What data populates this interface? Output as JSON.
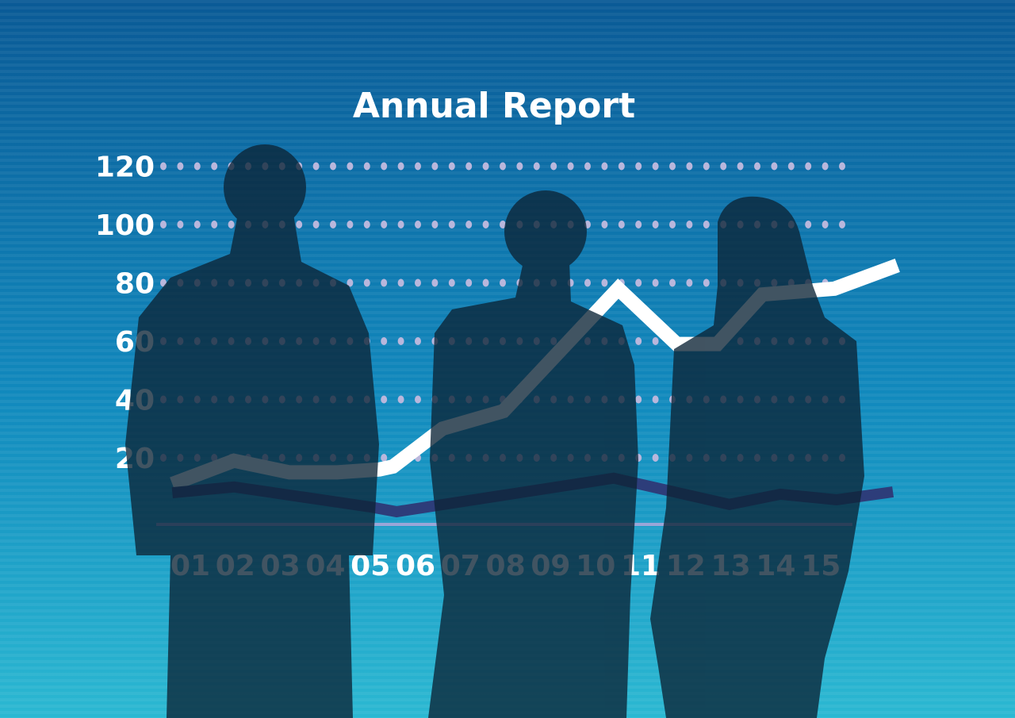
{
  "chart_data": {
    "type": "line",
    "title": "Annual Report",
    "xlabel": "",
    "ylabel": "",
    "ylim": [
      0,
      120
    ],
    "xlim": [
      0.6,
      16.7
    ],
    "y_ticks": [
      "20",
      "40",
      "60",
      "80",
      "100",
      "120"
    ],
    "x_ticks": [
      "01",
      "02",
      "03",
      "04",
      "05",
      "06",
      "07",
      "08",
      "09",
      "10",
      "11",
      "12",
      "13",
      "14",
      "15"
    ],
    "grid": "dotted horizontal",
    "series": [
      {
        "color": "#ffffff",
        "x": [
          0.6,
          1.97,
          3.2,
          4.26,
          5.2,
          5.5,
          6.6,
          7.95,
          10.5,
          11.8,
          12.7,
          13.7,
          15.3,
          16.7
        ],
        "values": [
          11,
          19,
          15,
          15,
          16,
          17,
          30,
          36,
          78,
          59,
          59,
          76,
          78,
          86
        ]
      },
      {
        "color": "#2d3d7a",
        "x": [
          0.6,
          1.97,
          5.05,
          5.58,
          10.4,
          12.97,
          14.1,
          15.35,
          16.6
        ],
        "values": [
          8,
          10,
          3,
          1.5,
          13,
          4,
          7.5,
          5.6,
          8.3
        ]
      }
    ]
  },
  "colors": {
    "bg_top": "#0a5a96",
    "bg_bottom": "#2bb8d2",
    "silhouette": "#0c2436",
    "dots": "#b9b7dc"
  }
}
